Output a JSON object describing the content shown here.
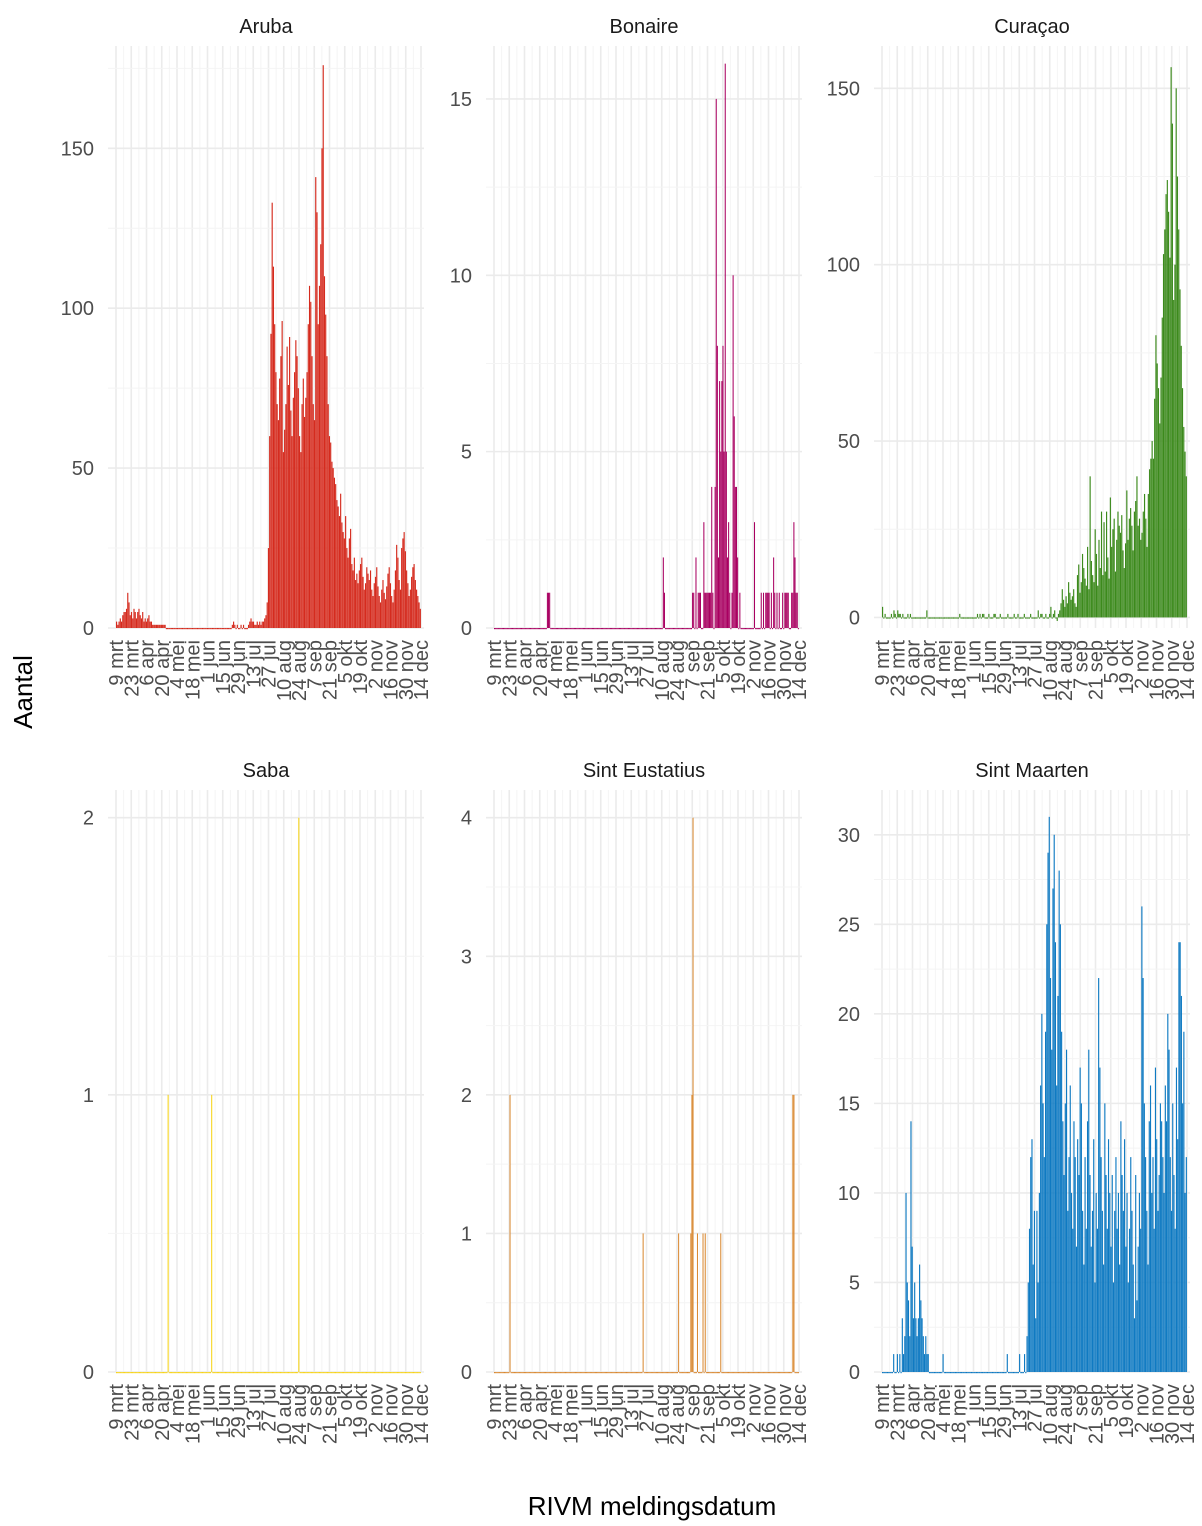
{
  "xlabel": "RIVM meldingsdatum",
  "ylabel": "Aantal",
  "x_ticks": [
    "9 mrt",
    "23 mrt",
    "6 apr",
    "20 apr",
    "4 mei",
    "18 mei",
    "1 jun",
    "15 jun",
    "29 jun",
    "13 jul",
    "27 jul",
    "10 aug",
    "24 aug",
    "7 sep",
    "21 sep",
    "5 okt",
    "19 okt",
    "2 nov",
    "16 nov",
    "30 nov",
    "14 dec"
  ],
  "chart_data": [
    {
      "type": "bar",
      "title": "Aruba",
      "color": "#D52B1E",
      "ylim": [
        0,
        182
      ],
      "y_ticks": [
        0,
        50,
        100,
        150
      ],
      "date_range": [
        "2020-03-09",
        "2020-12-14"
      ],
      "values": [
        2,
        1,
        2,
        3,
        2,
        4,
        5,
        5,
        6,
        11,
        8,
        4,
        5,
        3,
        6,
        5,
        3,
        5,
        6,
        4,
        3,
        5,
        2,
        3,
        2,
        3,
        4,
        2,
        2,
        1,
        1,
        1,
        1,
        1,
        1,
        1,
        1,
        1,
        1,
        1,
        0,
        0,
        0,
        0,
        0,
        0,
        0,
        0,
        0,
        0,
        0,
        0,
        0,
        0,
        0,
        0,
        0,
        0,
        0,
        0,
        0,
        0,
        0,
        0,
        0,
        0,
        0,
        0,
        0,
        0,
        0,
        0,
        0,
        0,
        0,
        0,
        0,
        0,
        0,
        0,
        0,
        0,
        0,
        0,
        0,
        0,
        0,
        0,
        0,
        0,
        0,
        0,
        0,
        1,
        2,
        1,
        0,
        1,
        0,
        0,
        1,
        0,
        1,
        0,
        0,
        0,
        1,
        2,
        3,
        2,
        2,
        1,
        1,
        2,
        1,
        2,
        1,
        2,
        2,
        3,
        4,
        8,
        25,
        60,
        92,
        133,
        113,
        95,
        80,
        70,
        65,
        78,
        85,
        96,
        55,
        62,
        70,
        88,
        76,
        91,
        68,
        60,
        72,
        80,
        90,
        85,
        75,
        60,
        55,
        70,
        78,
        66,
        72,
        80,
        95,
        107,
        102,
        85,
        70,
        65,
        141,
        130,
        95,
        107,
        120,
        150,
        176,
        110,
        98,
        85,
        70,
        60,
        58,
        52,
        50,
        47,
        45,
        40,
        38,
        35,
        42,
        33,
        30,
        28,
        35,
        25,
        22,
        28,
        31,
        20,
        18,
        22,
        15,
        17,
        14,
        18,
        20,
        22,
        16,
        12,
        14,
        19,
        17,
        15,
        18,
        12,
        10,
        14,
        16,
        19,
        13,
        10,
        8,
        12,
        15,
        11,
        9,
        13,
        17,
        19,
        14,
        10,
        8,
        12,
        18,
        26,
        22,
        15,
        12,
        25,
        28,
        30,
        24,
        18,
        14,
        10,
        12,
        16,
        19,
        20,
        15,
        12,
        10,
        8,
        6
      ]
    },
    {
      "type": "bar",
      "title": "Bonaire",
      "color": "#A90061",
      "ylim": [
        0,
        16.5
      ],
      "y_ticks": [
        0,
        5,
        10,
        15
      ],
      "date_range": [
        "2020-03-09",
        "2020-12-14"
      ],
      "values": [
        0,
        0,
        0,
        0,
        0,
        0,
        0,
        0,
        0,
        0,
        0,
        0,
        0,
        0,
        0,
        0,
        0,
        0,
        0,
        0,
        0,
        0,
        0,
        0,
        0,
        0,
        0,
        0,
        0,
        0,
        0,
        0,
        0,
        0,
        0,
        0,
        0,
        0,
        0,
        0,
        0,
        0,
        0,
        0,
        0,
        0,
        0,
        1,
        1,
        1,
        0,
        0,
        0,
        0,
        0,
        0,
        0,
        0,
        0,
        0,
        0,
        0,
        0,
        0,
        0,
        0,
        0,
        0,
        0,
        0,
        0,
        0,
        0,
        0,
        0,
        0,
        0,
        0,
        0,
        0,
        0,
        0,
        0,
        0,
        0,
        0,
        0,
        0,
        0,
        0,
        0,
        0,
        0,
        0,
        0,
        0,
        0,
        0,
        0,
        0,
        0,
        0,
        0,
        0,
        0,
        0,
        0,
        0,
        0,
        0,
        0,
        0,
        0,
        0,
        0,
        0,
        0,
        0,
        0,
        0,
        0,
        0,
        0,
        0,
        0,
        0,
        0,
        0,
        0,
        0,
        0,
        0,
        0,
        0,
        0,
        0,
        0,
        0,
        0,
        0,
        0,
        0,
        0,
        0,
        0,
        0,
        0,
        0,
        0,
        0,
        2,
        1,
        0,
        0,
        0,
        0,
        0,
        0,
        0,
        0,
        0,
        0,
        0,
        0,
        0,
        0,
        0,
        0,
        0,
        0,
        0,
        0,
        0,
        0,
        0,
        0,
        1,
        1,
        0,
        2,
        0,
        1,
        1,
        1,
        0,
        0,
        3,
        1,
        1,
        1,
        1,
        1,
        1,
        4,
        1,
        0,
        4,
        15,
        8,
        2,
        7,
        5,
        7,
        8,
        5,
        16,
        5,
        2,
        3,
        1,
        0,
        1,
        10,
        6,
        4,
        4,
        2,
        0,
        1,
        0,
        0,
        0,
        0,
        0,
        0,
        0,
        0,
        0,
        0,
        0,
        0,
        3,
        0,
        0,
        0,
        0,
        0,
        1,
        0,
        1,
        0,
        1,
        1,
        1,
        1,
        0,
        1,
        0,
        2,
        1,
        0,
        1,
        0,
        1,
        0,
        0,
        1,
        0,
        1,
        1,
        1,
        1,
        0,
        0,
        1,
        1,
        3,
        2,
        1,
        1,
        0
      ]
    },
    {
      "type": "bar",
      "title": "Curaçao",
      "color": "#3C8A1C",
      "ylim": [
        -3,
        162
      ],
      "y_ticks": [
        0,
        50,
        100,
        150
      ],
      "date_range": [
        "2020-03-09",
        "2020-12-14"
      ],
      "values": [
        3,
        0,
        1,
        0,
        0,
        0,
        0,
        1,
        0,
        2,
        1,
        0,
        2,
        1,
        1,
        0,
        1,
        0,
        0,
        0,
        1,
        0,
        1,
        0,
        0,
        0,
        0,
        0,
        0,
        0,
        0,
        0,
        0,
        0,
        0,
        2,
        0,
        0,
        0,
        0,
        0,
        0,
        0,
        0,
        0,
        0,
        0,
        0,
        0,
        0,
        0,
        0,
        0,
        0,
        0,
        0,
        0,
        0,
        0,
        0,
        0,
        1,
        0,
        0,
        0,
        0,
        0,
        0,
        0,
        0,
        0,
        0,
        0,
        0,
        0,
        1,
        0,
        1,
        0,
        1,
        1,
        0,
        0,
        0,
        1,
        0,
        0,
        0,
        1,
        1,
        0,
        0,
        0,
        1,
        0,
        0,
        0,
        0,
        0,
        1,
        0,
        0,
        0,
        0,
        1,
        0,
        0,
        1,
        0,
        0,
        0,
        0,
        1,
        0,
        0,
        0,
        0,
        1,
        0,
        0,
        0,
        0,
        0,
        2,
        0,
        1,
        1,
        0,
        0,
        1,
        0,
        0,
        1,
        3,
        0,
        1,
        2,
        0,
        -1,
        1,
        2,
        4,
        8,
        5,
        3,
        6,
        4,
        10,
        7,
        5,
        6,
        8,
        4,
        3,
        12,
        15,
        7,
        10,
        18,
        14,
        11,
        9,
        20,
        8,
        40,
        16,
        12,
        10,
        25,
        18,
        9,
        22,
        14,
        30,
        12,
        27,
        13,
        30,
        17,
        11,
        34,
        20,
        25,
        28,
        13,
        22,
        30,
        26,
        24,
        29,
        19,
        14,
        21,
        36,
        22,
        28,
        31,
        26,
        19,
        30,
        33,
        40,
        26,
        28,
        22,
        24,
        30,
        35,
        28,
        20,
        35,
        42,
        45,
        50,
        45,
        62,
        80,
        72,
        65,
        55,
        68,
        85,
        103,
        110,
        120,
        124,
        115,
        102,
        156,
        140,
        90,
        100,
        150,
        125,
        110,
        93,
        77,
        65,
        54,
        47,
        40
      ]
    },
    {
      "type": "bar",
      "title": "Saba",
      "color": "#F7D417",
      "ylim": [
        0,
        2.1
      ],
      "y_ticks": [
        0,
        1,
        2
      ],
      "date_range": [
        "2020-03-09",
        "2020-12-14"
      ],
      "values": [
        0,
        0,
        0,
        0,
        0,
        0,
        0,
        0,
        0,
        0,
        0,
        0,
        0,
        0,
        0,
        0,
        0,
        0,
        0,
        0,
        0,
        0,
        0,
        0,
        0,
        0,
        0,
        0,
        0,
        0,
        0,
        0,
        0,
        0,
        0,
        0,
        0,
        0,
        0,
        0,
        0,
        0,
        0,
        0,
        0,
        1,
        0,
        0,
        0,
        0,
        0,
        0,
        0,
        0,
        0,
        0,
        0,
        0,
        0,
        0,
        0,
        0,
        0,
        0,
        0,
        0,
        0,
        0,
        0,
        0,
        0,
        0,
        0,
        0,
        0,
        0,
        0,
        0,
        0,
        0,
        0,
        0,
        0,
        1,
        0,
        0,
        0,
        0,
        0,
        0,
        0,
        0,
        0,
        0,
        0,
        0,
        0,
        0,
        0,
        0,
        0,
        0,
        0,
        0,
        0,
        0,
        0,
        0,
        0,
        0,
        0,
        0,
        0,
        0,
        0,
        0,
        0,
        0,
        0,
        0,
        0,
        0,
        0,
        0,
        0,
        0,
        0,
        0,
        0,
        0,
        0,
        0,
        0,
        0,
        0,
        0,
        0,
        0,
        0,
        0,
        0,
        0,
        0,
        0,
        0,
        0,
        0,
        0,
        0,
        0,
        0,
        0,
        0,
        0,
        0,
        0,
        0,
        0,
        0,
        2,
        0,
        0,
        0,
        0,
        0,
        0,
        0,
        0,
        0,
        0,
        0,
        0,
        0,
        0,
        0,
        0,
        0,
        0,
        0,
        0,
        0,
        0,
        0,
        0,
        0,
        0,
        0,
        0,
        0,
        0,
        0,
        0,
        0,
        0,
        0,
        0,
        0,
        0,
        0,
        0,
        0,
        0,
        0,
        0,
        0,
        0,
        0,
        0,
        0,
        0,
        0,
        0,
        0,
        0,
        0,
        0,
        0,
        0,
        0,
        0,
        0,
        0,
        0,
        0,
        0,
        0,
        0,
        0,
        0,
        0,
        0,
        0,
        0,
        0,
        0,
        0,
        0,
        0,
        0,
        0,
        0,
        0,
        0,
        0,
        0,
        0,
        0,
        0,
        0,
        0,
        0,
        0,
        0,
        0,
        0,
        0,
        0,
        0,
        0,
        0,
        0,
        0,
        0,
        0,
        0,
        0
      ]
    },
    {
      "type": "bar",
      "title": "Sint Eustatius",
      "color": "#D98830",
      "ylim": [
        0,
        4.2
      ],
      "y_ticks": [
        0,
        1,
        2,
        3,
        4
      ],
      "date_range": [
        "2020-03-09",
        "2020-12-14"
      ],
      "values": [
        0,
        0,
        0,
        0,
        0,
        0,
        0,
        0,
        0,
        0,
        0,
        0,
        0,
        0,
        2,
        0,
        0,
        0,
        0,
        0,
        0,
        0,
        0,
        0,
        0,
        0,
        0,
        0,
        0,
        0,
        0,
        0,
        0,
        0,
        0,
        0,
        0,
        0,
        0,
        0,
        0,
        0,
        0,
        0,
        0,
        0,
        0,
        0,
        0,
        0,
        0,
        0,
        0,
        0,
        0,
        0,
        0,
        0,
        0,
        0,
        0,
        0,
        0,
        0,
        0,
        0,
        0,
        0,
        0,
        0,
        0,
        0,
        0,
        0,
        0,
        0,
        0,
        0,
        0,
        0,
        0,
        0,
        0,
        0,
        0,
        0,
        0,
        0,
        0,
        0,
        0,
        0,
        0,
        0,
        0,
        0,
        0,
        0,
        0,
        0,
        0,
        0,
        0,
        0,
        0,
        0,
        0,
        0,
        0,
        0,
        0,
        0,
        0,
        0,
        0,
        0,
        0,
        0,
        0,
        0,
        0,
        0,
        0,
        0,
        0,
        0,
        0,
        0,
        0,
        0,
        0,
        0,
        0,
        0,
        1,
        0,
        0,
        0,
        0,
        0,
        0,
        0,
        0,
        0,
        0,
        0,
        0,
        0,
        0,
        0,
        0,
        0,
        0,
        0,
        0,
        0,
        0,
        0,
        0,
        0,
        0,
        0,
        0,
        0,
        0,
        0,
        1,
        0,
        0,
        0,
        0,
        0,
        0,
        0,
        0,
        0,
        0,
        1,
        2,
        4,
        0,
        0,
        0,
        1,
        0,
        0,
        0,
        0,
        1,
        0,
        1,
        0,
        0,
        0,
        0,
        0,
        0,
        0,
        0,
        0,
        0,
        0,
        0,
        0,
        1,
        0,
        0,
        0,
        0,
        0,
        0,
        0,
        0,
        0,
        0,
        0,
        0,
        0,
        0,
        0,
        0,
        0,
        0,
        0,
        0,
        0,
        0,
        0,
        0,
        0,
        0,
        0,
        0,
        0,
        0,
        0,
        0,
        0,
        0,
        0,
        0,
        0,
        0,
        0,
        0,
        0,
        0,
        0,
        0,
        0,
        0,
        0,
        0,
        0,
        0,
        0,
        0,
        0,
        0,
        0,
        0,
        0,
        0,
        0,
        0,
        0,
        0,
        0,
        0,
        2,
        2,
        0,
        0,
        0,
        0
      ]
    },
    {
      "type": "bar",
      "title": "Sint Maarten",
      "color": "#0F7AC2",
      "ylim": [
        0,
        32.5
      ],
      "y_ticks": [
        0,
        5,
        10,
        15,
        20,
        25,
        30
      ],
      "date_range": [
        "2020-03-09",
        "2020-12-14"
      ],
      "values": [
        0,
        0,
        0,
        0,
        0,
        0,
        0,
        0,
        0,
        1,
        0,
        0,
        1,
        0,
        1,
        0,
        3,
        1,
        2,
        10,
        5,
        4,
        2,
        14,
        7,
        3,
        5,
        3,
        2,
        3,
        6,
        4,
        3,
        2,
        1,
        2,
        1,
        1,
        0,
        0,
        0,
        0,
        0,
        0,
        0,
        0,
        0,
        0,
        0,
        1,
        0,
        0,
        0,
        0,
        0,
        0,
        0,
        0,
        0,
        0,
        0,
        0,
        0,
        0,
        0,
        0,
        0,
        0,
        0,
        0,
        0,
        0,
        0,
        0,
        0,
        0,
        0,
        0,
        0,
        0,
        0,
        0,
        0,
        0,
        0,
        0,
        0,
        0,
        0,
        0,
        0,
        0,
        0,
        0,
        0,
        0,
        0,
        0,
        0,
        0,
        0,
        1,
        0,
        0,
        0,
        0,
        0,
        0,
        0,
        0,
        0,
        1,
        0,
        0,
        0,
        1,
        0,
        2,
        5,
        8,
        12,
        13,
        6,
        9,
        3,
        9,
        5,
        10,
        16,
        20,
        15,
        12,
        19,
        25,
        29,
        31,
        22,
        18,
        27,
        30,
        24,
        16,
        21,
        28,
        25,
        19,
        14,
        11,
        15,
        18,
        9,
        12,
        16,
        10,
        8,
        14,
        12,
        7,
        13,
        11,
        17,
        15,
        9,
        6,
        12,
        8,
        14,
        18,
        11,
        7,
        9,
        13,
        5,
        10,
        8,
        22,
        17,
        12,
        9,
        6,
        15,
        11,
        8,
        13,
        10,
        7,
        11,
        5,
        9,
        12,
        8,
        10,
        6,
        14,
        11,
        9,
        13,
        7,
        10,
        5,
        8,
        12,
        9,
        6,
        3,
        11,
        4,
        7,
        10,
        8,
        26,
        22,
        15,
        12,
        9,
        6,
        14,
        16,
        10,
        12,
        8,
        17,
        13,
        9,
        11,
        15,
        14,
        12,
        10,
        16,
        14,
        20,
        18,
        12,
        9,
        15,
        11,
        8,
        17,
        13,
        24,
        24,
        21,
        15,
        19,
        10,
        12
      ]
    }
  ]
}
